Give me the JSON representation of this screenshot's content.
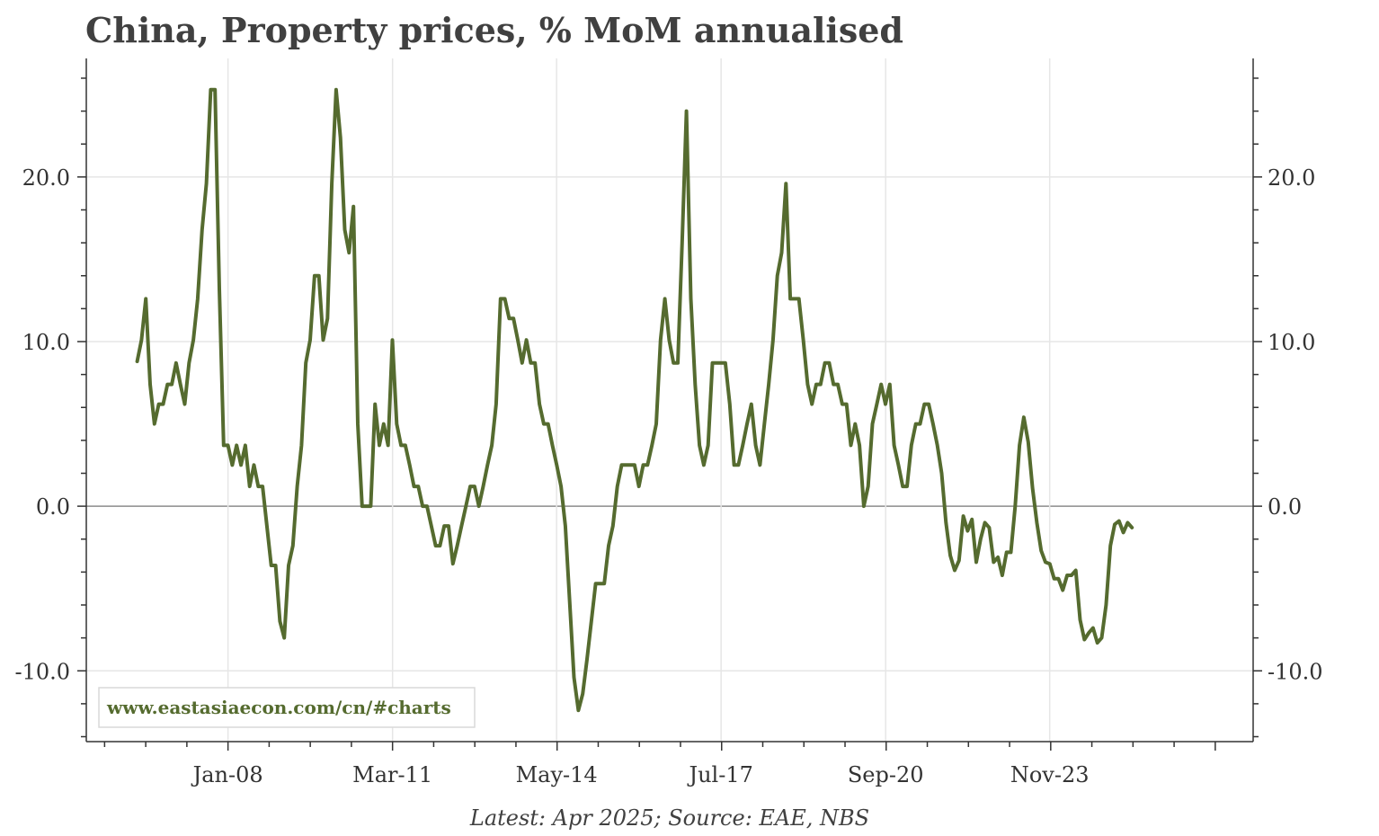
{
  "chart_data": {
    "type": "line",
    "title": "China, Property prices, % MoM annualised",
    "source_note": "Latest: Apr 2025; Source: EAE, NBS",
    "watermark": "www.eastasiaecon.com/cn/#charts",
    "xlabel": "",
    "ylabel": "",
    "ylim": [
      -14.3,
      27.2
    ],
    "xlim": [
      2005.27,
      2027.75
    ],
    "y_ticks": [
      -10,
      0,
      10,
      20
    ],
    "y_tick_labels": [
      "-10.0",
      "0.0",
      "10.0",
      "20.0"
    ],
    "x_ticks": [
      2008.0,
      2011.17,
      2014.33,
      2017.5,
      2020.67,
      2023.83
    ],
    "x_tick_labels": [
      "Jan-08",
      "Mar-11",
      "May-14",
      "Jul-17",
      "Sep-20",
      "Nov-23"
    ],
    "grid": true,
    "colors": {
      "series": "#556b2f",
      "grid": "#e6e6e6",
      "zero_line": "#8c8c8c",
      "axis": "#333333",
      "title": "#404040"
    },
    "series": [
      {
        "name": "Property prices, % MoM annualised",
        "x_start": 2006.25,
        "x_step": 0.08333,
        "values": [
          8.8,
          10.1,
          12.6,
          7.4,
          5.0,
          6.2,
          6.2,
          7.4,
          7.4,
          8.7,
          7.4,
          6.2,
          8.7,
          10.1,
          12.6,
          16.8,
          19.6,
          25.3,
          25.3,
          13.2,
          3.7,
          3.7,
          2.5,
          3.7,
          2.5,
          3.7,
          1.2,
          2.5,
          1.2,
          1.2,
          -1.2,
          -3.6,
          -3.6,
          -7.0,
          -8.0,
          -3.6,
          -2.4,
          1.2,
          3.7,
          8.7,
          10.1,
          14.0,
          14.0,
          10.1,
          11.4,
          19.6,
          25.3,
          22.4,
          16.8,
          15.4,
          18.2,
          5.0,
          0.0,
          0.0,
          0.0,
          6.2,
          3.7,
          5.0,
          3.7,
          10.1,
          5.0,
          3.7,
          3.7,
          2.5,
          1.2,
          1.2,
          0.0,
          0.0,
          -1.2,
          -2.4,
          -2.4,
          -1.2,
          -1.2,
          -3.5,
          -2.4,
          -1.2,
          0.0,
          1.2,
          1.2,
          0.0,
          1.2,
          2.5,
          3.7,
          6.2,
          12.6,
          12.6,
          11.4,
          11.4,
          10.1,
          8.7,
          10.1,
          8.7,
          8.7,
          6.2,
          5.0,
          5.0,
          3.7,
          2.5,
          1.2,
          -1.2,
          -5.8,
          -10.4,
          -12.4,
          -11.4,
          -9.3,
          -7.0,
          -4.7,
          -4.7,
          -4.7,
          -2.4,
          -1.2,
          1.2,
          2.5,
          2.5,
          2.5,
          2.5,
          1.2,
          2.5,
          2.5,
          3.7,
          5.0,
          10.1,
          12.6,
          10.1,
          8.7,
          8.7,
          16.0,
          24.0,
          12.6,
          7.4,
          3.7,
          2.5,
          3.7,
          8.7,
          8.7,
          8.7,
          8.7,
          6.2,
          2.5,
          2.5,
          3.7,
          5.0,
          6.2,
          3.7,
          2.5,
          5.0,
          7.4,
          10.1,
          14.0,
          15.4,
          19.6,
          12.6,
          12.6,
          12.6,
          10.1,
          7.4,
          6.2,
          7.4,
          7.4,
          8.7,
          8.7,
          7.4,
          7.4,
          6.2,
          6.2,
          3.7,
          5.0,
          3.7,
          0.0,
          1.2,
          5.0,
          6.2,
          7.4,
          6.2,
          7.4,
          3.7,
          2.5,
          1.2,
          1.2,
          3.7,
          5.0,
          5.0,
          6.2,
          6.2,
          5.0,
          3.7,
          2.0,
          -1.0,
          -3.0,
          -3.9,
          -3.3,
          -0.6,
          -1.5,
          -0.8,
          -3.4,
          -2.0,
          -1.0,
          -1.3,
          -3.4,
          -3.1,
          -4.2,
          -2.8,
          -2.8,
          0.0,
          3.7,
          5.4,
          3.9,
          1.1,
          -1.0,
          -2.7,
          -3.4,
          -3.5,
          -4.4,
          -4.4,
          -5.1,
          -4.2,
          -4.2,
          -3.9,
          -6.9,
          -8.1,
          -7.7,
          -7.4,
          -8.3,
          -8.0,
          -6.0,
          -2.4,
          -1.1,
          -0.9,
          -1.6,
          -1.0,
          -1.3
        ]
      }
    ]
  }
}
